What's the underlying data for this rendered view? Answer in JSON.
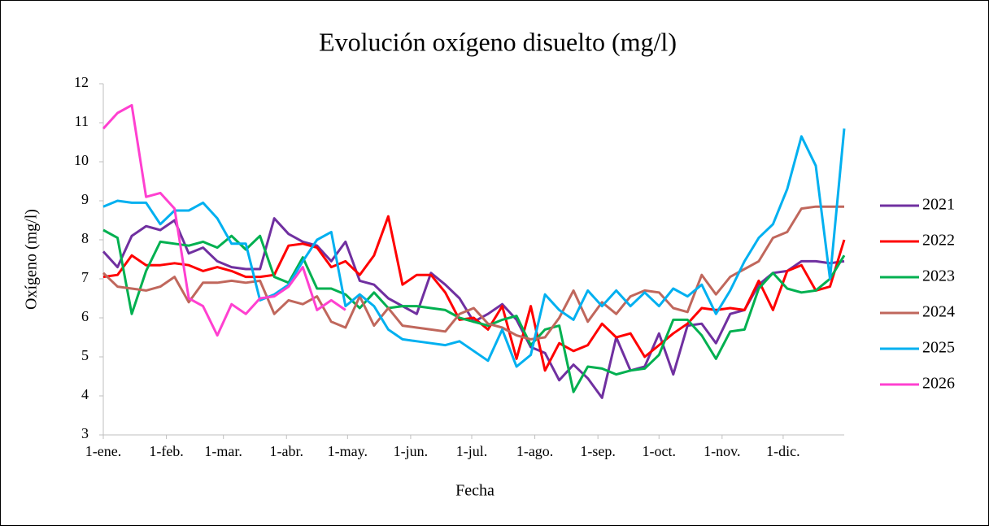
{
  "chart_data": {
    "type": "line",
    "title": "Evolución oxígeno disuelto (mg/l)",
    "x_label": "Fecha",
    "y_label": "Oxígeno (mg/l)",
    "x": [
      1,
      8,
      15,
      22,
      29,
      36,
      43,
      50,
      57,
      64,
      71,
      78,
      85,
      92,
      99,
      106,
      113,
      120,
      127,
      134,
      141,
      148,
      155,
      162,
      169,
      176,
      183,
      190,
      197,
      204,
      211,
      218,
      225,
      232,
      239,
      246,
      253,
      260,
      267,
      274,
      281,
      288,
      295,
      302,
      309,
      316,
      323,
      330,
      337,
      344,
      351,
      358,
      365
    ],
    "xlim": [
      1,
      365
    ],
    "xticks": [
      {
        "value": 1,
        "label": "1-ene."
      },
      {
        "value": 32,
        "label": "1-feb."
      },
      {
        "value": 60,
        "label": "1-mar."
      },
      {
        "value": 91,
        "label": "1-abr."
      },
      {
        "value": 121,
        "label": "1-may."
      },
      {
        "value": 152,
        "label": "1-jun."
      },
      {
        "value": 182,
        "label": "1-jul."
      },
      {
        "value": 213,
        "label": "1-ago."
      },
      {
        "value": 244,
        "label": "1-sep."
      },
      {
        "value": 274,
        "label": "1-oct."
      },
      {
        "value": 305,
        "label": "1-nov."
      },
      {
        "value": 335,
        "label": "1-dic."
      }
    ],
    "ylim": [
      3,
      12
    ],
    "yticks": [
      3,
      4,
      5,
      6,
      7,
      8,
      9,
      10,
      11,
      12
    ],
    "grid": false,
    "legend": "right",
    "series": [
      {
        "name": "2021",
        "color": "#7030a0",
        "values": [
          7.7,
          7.3,
          8.1,
          8.35,
          8.25,
          8.5,
          7.65,
          7.8,
          7.45,
          7.3,
          7.25,
          7.25,
          8.55,
          8.15,
          7.95,
          7.85,
          7.45,
          7.95,
          6.95,
          6.85,
          6.5,
          6.3,
          6.1,
          7.15,
          6.85,
          6.5,
          5.9,
          6.1,
          6.35,
          5.95,
          5.25,
          5.1,
          4.4,
          4.8,
          4.45,
          3.95,
          5.5,
          4.65,
          4.75,
          5.6,
          4.55,
          5.8,
          5.85,
          5.35,
          6.1,
          6.2,
          6.85,
          7.15,
          7.2,
          7.45,
          7.45,
          7.4,
          7.45
        ]
      },
      {
        "name": "2022",
        "color": "#ff0000",
        "values": [
          7.05,
          7.1,
          7.6,
          7.35,
          7.35,
          7.4,
          7.35,
          7.2,
          7.3,
          7.2,
          7.05,
          7.05,
          7.1,
          7.85,
          7.9,
          7.8,
          7.3,
          7.45,
          7.1,
          7.6,
          8.6,
          6.85,
          7.1,
          7.1,
          6.65,
          5.95,
          6.0,
          5.7,
          6.3,
          4.95,
          6.3,
          4.65,
          5.35,
          5.15,
          5.3,
          5.85,
          5.5,
          5.6,
          5.0,
          5.3,
          5.6,
          5.85,
          6.25,
          6.2,
          6.25,
          6.2,
          6.95,
          6.2,
          7.2,
          7.35,
          6.7,
          6.8,
          8.0
        ]
      },
      {
        "name": "2023",
        "color": "#00b050",
        "values": [
          8.25,
          8.05,
          6.1,
          7.2,
          7.95,
          7.9,
          7.85,
          7.95,
          7.8,
          8.1,
          7.75,
          8.1,
          7.05,
          6.9,
          7.55,
          6.75,
          6.75,
          6.6,
          6.25,
          6.65,
          6.25,
          6.3,
          6.3,
          6.25,
          6.2,
          6.0,
          5.9,
          5.8,
          5.95,
          6.05,
          5.3,
          5.7,
          5.8,
          4.1,
          4.75,
          4.7,
          4.55,
          4.65,
          4.7,
          5.05,
          5.95,
          5.95,
          5.55,
          4.95,
          5.65,
          5.7,
          6.75,
          7.15,
          6.75,
          6.65,
          6.7,
          7.0,
          7.6
        ]
      },
      {
        "name": "2024",
        "color": "#c0675c",
        "values": [
          7.15,
          6.8,
          6.75,
          6.7,
          6.8,
          7.05,
          6.4,
          6.9,
          6.9,
          6.95,
          6.9,
          6.95,
          6.1,
          6.45,
          6.35,
          6.55,
          5.9,
          5.75,
          6.55,
          5.8,
          6.25,
          5.8,
          5.75,
          5.7,
          5.65,
          6.1,
          6.25,
          5.85,
          5.75,
          5.55,
          5.45,
          5.5,
          6.0,
          6.7,
          5.9,
          6.4,
          6.1,
          6.55,
          6.7,
          6.65,
          6.25,
          6.15,
          7.1,
          6.6,
          7.05,
          7.25,
          7.45,
          8.05,
          8.2,
          8.8,
          8.85,
          8.85,
          8.85
        ]
      },
      {
        "name": "2025",
        "color": "#00b0f0",
        "values": [
          8.85,
          9.0,
          8.95,
          8.95,
          8.4,
          8.75,
          8.75,
          8.95,
          8.55,
          7.9,
          7.9,
          6.45,
          6.6,
          6.85,
          7.45,
          8.0,
          8.2,
          6.3,
          6.6,
          6.3,
          5.7,
          5.45,
          5.4,
          5.35,
          5.3,
          5.4,
          5.15,
          4.9,
          5.7,
          4.75,
          5.05,
          6.6,
          6.2,
          5.95,
          6.7,
          6.3,
          6.7,
          6.3,
          6.65,
          6.3,
          6.75,
          6.55,
          6.85,
          6.1,
          6.7,
          7.45,
          8.05,
          8.4,
          9.3,
          10.65,
          9.9,
          7.0,
          10.85
        ]
      },
      {
        "name": "2026",
        "color": "#ff40d0",
        "values": [
          10.85,
          11.25,
          11.45,
          9.1,
          9.2,
          8.8,
          6.5,
          6.3,
          5.55,
          6.35,
          6.1,
          6.5,
          6.55,
          6.8,
          7.3,
          6.2,
          6.45,
          6.2,
          null,
          null,
          null,
          null,
          null,
          null,
          null,
          null,
          null,
          null,
          null,
          null,
          null,
          null,
          null,
          null,
          null,
          null,
          null,
          null,
          null,
          null,
          null,
          null,
          null,
          null,
          null,
          null,
          null,
          null,
          null,
          null,
          null,
          null,
          null
        ]
      }
    ]
  }
}
